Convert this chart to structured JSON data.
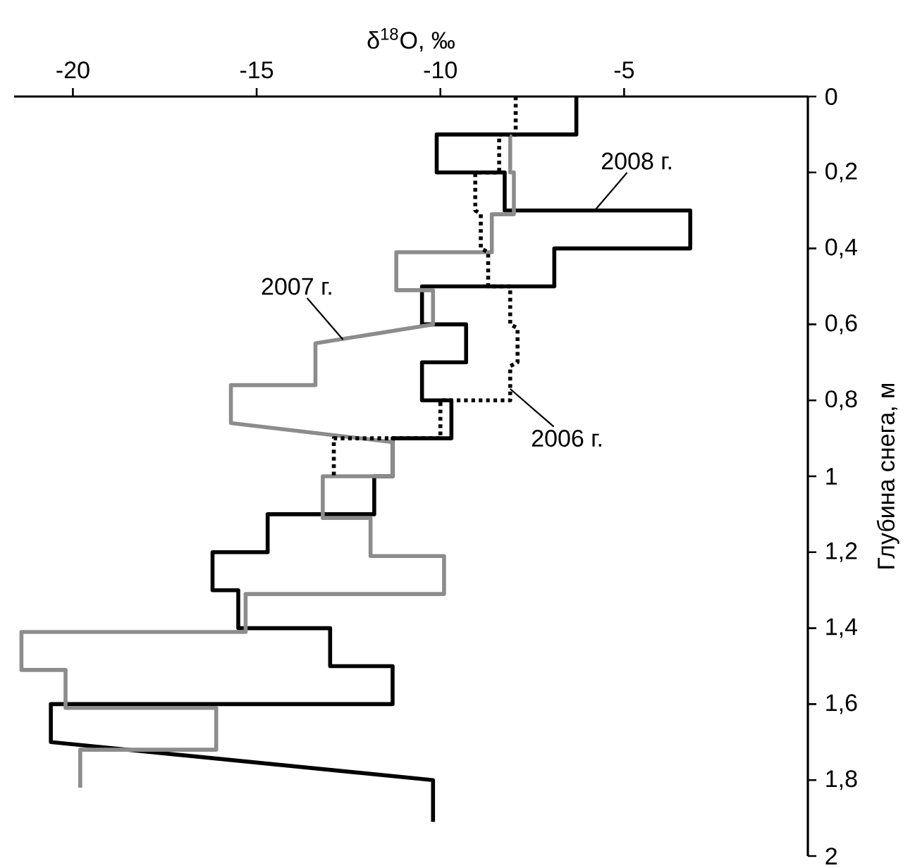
{
  "chart_data": {
    "type": "line",
    "xlabel": "δ$^{18}$O, ‰",
    "ylabel": "Глубина снега, м",
    "xlim": [
      -21.6,
      0
    ],
    "ylim": [
      2,
      0
    ],
    "xticks": [
      -20,
      -15,
      -10,
      -5
    ],
    "yticks": [
      0,
      {
        "value": 0.2,
        "label": "0,2"
      },
      {
        "value": 0.4,
        "label": "0,4"
      },
      {
        "value": 0.6,
        "label": "0,6"
      },
      {
        "value": 0.8,
        "label": "0,8"
      },
      1,
      {
        "value": 1.2,
        "label": "1,2"
      },
      {
        "value": 1.4,
        "label": "1,4"
      },
      {
        "value": 1.6,
        "label": "1,6"
      },
      {
        "value": 1.8,
        "label": "1,8"
      },
      2
    ],
    "marker": "none",
    "series": [
      {
        "color": "#000000",
        "line_style": "solid",
        "x": [
          -6.3,
          -6.3,
          -10.1,
          -10.1,
          -8.25,
          -8.25,
          -3.2,
          -3.2,
          -6.9,
          -6.9,
          -10.5,
          -10.5,
          -9.3,
          -9.3,
          -10.5,
          -10.5,
          -9.7,
          -9.7,
          -11.3,
          -11.3,
          -11.8,
          -11.8,
          -14.7,
          -14.7,
          -16.2,
          -16.2,
          -15.5,
          -15.5,
          -13.0,
          -13.0,
          -11.3,
          -11.3,
          -20.6,
          -20.6,
          -10.2,
          -10.2
        ],
        "values": [
          0,
          0.1,
          0.1,
          0.2,
          0.2,
          0.3,
          0.3,
          0.4,
          0.4,
          0.5,
          0.5,
          0.6,
          0.6,
          0.7,
          0.7,
          0.8,
          0.8,
          0.9,
          0.9,
          1.0,
          1.0,
          1.1,
          1.1,
          1.2,
          1.2,
          1.3,
          1.3,
          1.4,
          1.4,
          1.5,
          1.5,
          1.6,
          1.6,
          1.7,
          1.8,
          1.91
        ]
      },
      {
        "color": "#8c8c8c",
        "line_style": "solid",
        "x": [
          -8.1,
          -8.1,
          -8.0,
          -8.0,
          -8.6,
          -8.6,
          -11.2,
          -11.2,
          -10.2,
          -10.2,
          -13.4,
          -13.4,
          -15.7,
          -15.7,
          -11.3,
          -11.3,
          -13.2,
          -13.2,
          -11.9,
          -11.9,
          -9.9,
          -9.9,
          -15.3,
          -15.3,
          -21.4,
          -21.4,
          -20.2,
          -20.2,
          -16.1,
          -16.1,
          -19.8,
          -19.8
        ],
        "values": [
          0.1,
          0.2,
          0.2,
          0.31,
          0.31,
          0.41,
          0.41,
          0.51,
          0.51,
          0.6,
          0.65,
          0.76,
          0.76,
          0.86,
          0.91,
          1.0,
          1.0,
          1.11,
          1.11,
          1.21,
          1.21,
          1.31,
          1.31,
          1.41,
          1.41,
          1.51,
          1.51,
          1.61,
          1.61,
          1.72,
          1.72,
          1.82
        ]
      },
      {
        "color": "#000000",
        "line_style": "dotted",
        "x": [
          -7.95,
          -7.95,
          -8.4,
          -8.4,
          -9.05,
          -9.05,
          -8.9,
          -8.9,
          -8.7,
          -8.7,
          -8.1,
          -8.1,
          -7.9,
          -7.9,
          -8.1,
          -8.1,
          -10.0,
          -10.0,
          -12.9,
          -12.9
        ],
        "values": [
          0,
          0.1,
          0.1,
          0.2,
          0.2,
          0.3,
          0.31,
          0.4,
          0.41,
          0.5,
          0.5,
          0.6,
          0.61,
          0.7,
          0.71,
          0.8,
          0.8,
          0.9,
          0.9,
          1.0
        ]
      }
    ],
    "annotations": [
      {
        "text": "2008 г.",
        "x": -5.8,
        "y": 0.3
      },
      {
        "text": "2007 г.",
        "x": -12.65,
        "y": 0.64
      },
      {
        "text": "2006 г.",
        "x": -8.1,
        "y": 0.77
      }
    ]
  }
}
